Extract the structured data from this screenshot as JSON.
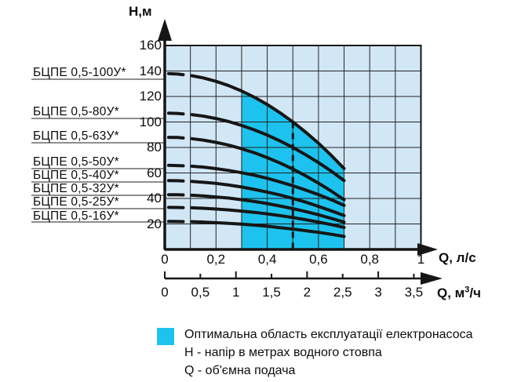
{
  "colors": {
    "plot_bg": "#d2e7f6",
    "optimal_region": "#1dc3ee",
    "ink": "#161616",
    "grid": "#222222",
    "leader": "#4a4a4a"
  },
  "y_axis": {
    "title": "Н,м",
    "ticks": [
      {
        "v": 160,
        "label": "160"
      },
      {
        "v": 140,
        "label": "140"
      },
      {
        "v": 120,
        "label": "120"
      },
      {
        "v": 100,
        "label": "100"
      },
      {
        "v": 80,
        "label": "80"
      },
      {
        "v": 60,
        "label": "60"
      },
      {
        "v": 40,
        "label": "40"
      },
      {
        "v": 20,
        "label": "20"
      }
    ]
  },
  "x_axis_ls": {
    "title": "Q, л/с",
    "ticks": [
      {
        "v": 0,
        "label": "0"
      },
      {
        "v": 0.2,
        "label": "0,2"
      },
      {
        "v": 0.4,
        "label": "0,4"
      },
      {
        "v": 0.6,
        "label": "0,6"
      },
      {
        "v": 0.8,
        "label": "0,8"
      },
      {
        "v": 1,
        "label": "1"
      }
    ]
  },
  "x_axis_m3h": {
    "title_prefix": "Q, м",
    "title_sup": "3",
    "title_suffix": "/ч",
    "ticks": [
      {
        "v": 0,
        "label": "0",
        "major": true
      },
      {
        "v": 0.5,
        "label": "0,5",
        "major": false
      },
      {
        "v": 1,
        "label": "1",
        "major": true
      },
      {
        "v": 1.5,
        "label": "1,5",
        "major": false
      },
      {
        "v": 2,
        "label": "2",
        "major": true
      },
      {
        "v": 2.5,
        "label": "2,5",
        "major": false
      },
      {
        "v": 3,
        "label": "3",
        "major": true
      },
      {
        "v": 3.5,
        "label": "3,5",
        "major": false
      }
    ]
  },
  "legend": {
    "optimal_label": "Оптимальна область експлуатації електронасоса",
    "h_label": "Н - напір в метрах водного стовпа",
    "q_label": "Q - об'ємна подача"
  },
  "chart_data": {
    "type": "line",
    "ylabel": "Н,м",
    "xlabel_primary": "Q, л/с",
    "xlabel_secondary": "Q, м³/ч",
    "x_range_ls": [
      0,
      1
    ],
    "y_range_m": [
      0,
      160
    ],
    "grid": "on",
    "grid_step_x_ls": 0.1,
    "grid_step_y_m": 20,
    "x_ticks_ls": [
      0,
      0.2,
      0.4,
      0.6,
      0.8,
      1
    ],
    "x_ticks_m3h": [
      0,
      0.5,
      1,
      1.5,
      2,
      2.5,
      3,
      3.5
    ],
    "y_ticks_m": [
      20,
      40,
      60,
      80,
      100,
      120,
      140,
      160
    ],
    "ls_to_m3h_factor": 3.6,
    "nominal_flow_ls": 0.5,
    "optimal_region": {
      "q_min_ls": 0.3,
      "q_max_ls": 0.7
    },
    "series": [
      {
        "name": "БЦПЕ 0,5-100У*",
        "points": [
          [
            0,
            138
          ],
          [
            0.05,
            137.6
          ],
          [
            0.1,
            136.5
          ],
          [
            0.15,
            134.6
          ],
          [
            0.2,
            131.9
          ],
          [
            0.25,
            128.5
          ],
          [
            0.3,
            124.3
          ],
          [
            0.35,
            119.4
          ],
          [
            0.4,
            113.7
          ],
          [
            0.45,
            107.2
          ],
          [
            0.5,
            100
          ],
          [
            0.55,
            92
          ],
          [
            0.6,
            83.3
          ],
          [
            0.65,
            73.8
          ],
          [
            0.7,
            63.5
          ]
        ]
      },
      {
        "name": "БЦПЕ 0,5-80У*",
        "points": [
          [
            0,
            107
          ],
          [
            0.05,
            106.7
          ],
          [
            0.1,
            105.9
          ],
          [
            0.15,
            104.6
          ],
          [
            0.2,
            102.7
          ],
          [
            0.25,
            100.3
          ],
          [
            0.3,
            97.3
          ],
          [
            0.35,
            93.8
          ],
          [
            0.4,
            89.7
          ],
          [
            0.45,
            85.1
          ],
          [
            0.5,
            80
          ],
          [
            0.55,
            74.3
          ],
          [
            0.6,
            68.1
          ],
          [
            0.65,
            61.4
          ],
          [
            0.7,
            54.1
          ]
        ]
      },
      {
        "name": "БЦПЕ 0,5-63У*",
        "points": [
          [
            0,
            88
          ],
          [
            0.05,
            87.8
          ],
          [
            0.1,
            87
          ],
          [
            0.15,
            85.8
          ],
          [
            0.2,
            84
          ],
          [
            0.25,
            81.8
          ],
          [
            0.3,
            79
          ],
          [
            0.35,
            75.8
          ],
          [
            0.4,
            72
          ],
          [
            0.45,
            67.8
          ],
          [
            0.5,
            63
          ],
          [
            0.55,
            57.8
          ],
          [
            0.6,
            52
          ],
          [
            0.65,
            45.8
          ],
          [
            0.7,
            39
          ]
        ]
      },
      {
        "name": "БЦПЕ 0,5-50У*",
        "points": [
          [
            0,
            66
          ],
          [
            0.05,
            65.8
          ],
          [
            0.1,
            65.4
          ],
          [
            0.15,
            64.6
          ],
          [
            0.2,
            63.4
          ],
          [
            0.25,
            62
          ],
          [
            0.3,
            60.2
          ],
          [
            0.35,
            58.2
          ],
          [
            0.4,
            55.8
          ],
          [
            0.45,
            53
          ],
          [
            0.5,
            50
          ],
          [
            0.55,
            46.6
          ],
          [
            0.6,
            43
          ],
          [
            0.65,
            39
          ],
          [
            0.7,
            34.6
          ]
        ]
      },
      {
        "name": "БЦПЕ 0,5-40У*",
        "points": [
          [
            0,
            54
          ],
          [
            0.05,
            53.9
          ],
          [
            0.1,
            53.4
          ],
          [
            0.15,
            52.7
          ],
          [
            0.2,
            51.8
          ],
          [
            0.25,
            50.5
          ],
          [
            0.3,
            49
          ],
          [
            0.35,
            47.1
          ],
          [
            0.4,
            45
          ],
          [
            0.45,
            42.7
          ],
          [
            0.5,
            40
          ],
          [
            0.55,
            37.1
          ],
          [
            0.6,
            33.8
          ],
          [
            0.65,
            30.3
          ],
          [
            0.7,
            26.6
          ]
        ]
      },
      {
        "name": "БЦПЕ 0,5-32У*",
        "points": [
          [
            0,
            43
          ],
          [
            0.05,
            42.9
          ],
          [
            0.1,
            42.6
          ],
          [
            0.15,
            42
          ],
          [
            0.2,
            41.2
          ],
          [
            0.25,
            40.3
          ],
          [
            0.3,
            39
          ],
          [
            0.35,
            37.6
          ],
          [
            0.4,
            36
          ],
          [
            0.45,
            34.1
          ],
          [
            0.5,
            32
          ],
          [
            0.55,
            29.7
          ],
          [
            0.6,
            27.2
          ],
          [
            0.65,
            24.4
          ],
          [
            0.7,
            21.4
          ]
        ]
      },
      {
        "name": "БЦПЕ 0,5-25У*",
        "points": [
          [
            0,
            33
          ],
          [
            0.05,
            32.9
          ],
          [
            0.1,
            32.7
          ],
          [
            0.15,
            32.3
          ],
          [
            0.2,
            31.7
          ],
          [
            0.25,
            31
          ],
          [
            0.3,
            30.1
          ],
          [
            0.35,
            29.1
          ],
          [
            0.4,
            27.9
          ],
          [
            0.45,
            26.5
          ],
          [
            0.5,
            25
          ],
          [
            0.55,
            23.3
          ],
          [
            0.6,
            21.5
          ],
          [
            0.65,
            19.5
          ],
          [
            0.7,
            17.3
          ]
        ]
      },
      {
        "name": "БЦПЕ 0,5-16У*",
        "points": [
          [
            0,
            22
          ],
          [
            0.05,
            21.9
          ],
          [
            0.1,
            21.8
          ],
          [
            0.15,
            21.5
          ],
          [
            0.2,
            21
          ],
          [
            0.25,
            20.5
          ],
          [
            0.3,
            19.8
          ],
          [
            0.35,
            19.1
          ],
          [
            0.4,
            18.2
          ],
          [
            0.45,
            17.1
          ],
          [
            0.5,
            16
          ],
          [
            0.55,
            14.7
          ],
          [
            0.6,
            13.4
          ],
          [
            0.65,
            11.9
          ],
          [
            0.7,
            10.2
          ]
        ]
      }
    ]
  }
}
